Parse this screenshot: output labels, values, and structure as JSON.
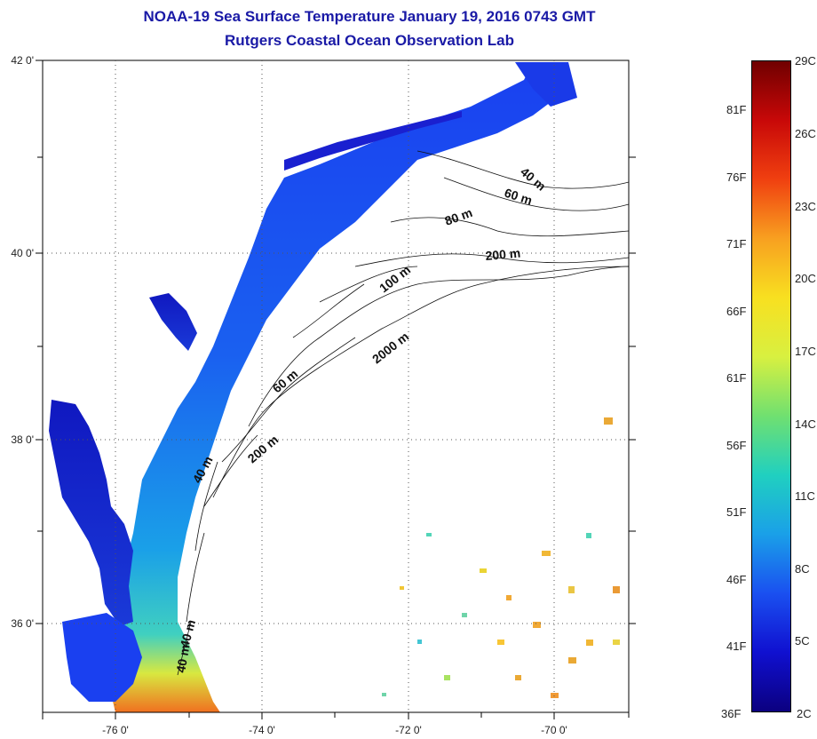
{
  "title": "NOAA-19 Sea Surface Temperature January 19, 2016 0743 GMT",
  "subtitle": "Rutgers Coastal Ocean Observation Lab",
  "map": {
    "longitude_ticks": [
      "-76 0'",
      "-74 0'",
      "-72 0'",
      "-70 0'"
    ],
    "latitude_ticks": [
      "42 0'",
      "40 0'",
      "38 0'",
      "36 0'"
    ],
    "colors": {
      "land": "#ffffff",
      "gridline": "#555555",
      "contour": "#111111"
    },
    "isobath_labels": [
      {
        "text": "40 m"
      },
      {
        "text": "60 m"
      },
      {
        "text": "80 m"
      },
      {
        "text": "200 m"
      },
      {
        "text": "100 m"
      },
      {
        "text": "2000 m"
      },
      {
        "text": "60 m"
      },
      {
        "text": "200 m"
      },
      {
        "text": "40 m"
      },
      {
        "text": "40 m"
      },
      {
        "text": "40 m"
      }
    ]
  },
  "colorbar": {
    "range_celsius": [
      2,
      29
    ],
    "celsius_labels": [
      "29C",
      "26C",
      "23C",
      "20C",
      "17C",
      "14C",
      "11C",
      "8C",
      "5C",
      "2C"
    ],
    "fahrenheit_labels": [
      "81F",
      "76F",
      "71F",
      "66F",
      "61F",
      "56F",
      "51F",
      "46F",
      "41F",
      "36F"
    ],
    "gradient_stops": [
      "#0b0080",
      "#1010d0",
      "#1a50f0",
      "#1aa0e8",
      "#20d0c0",
      "#70e070",
      "#d8f040",
      "#f8e020",
      "#f8a020",
      "#f04010",
      "#c80808",
      "#700000"
    ]
  }
}
